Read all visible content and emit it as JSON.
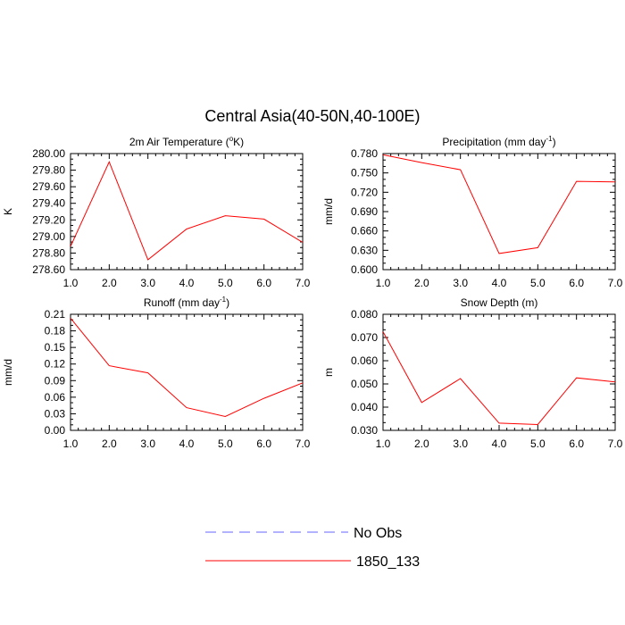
{
  "title": "Central Asia(40-50N,40-100E)",
  "legend": {
    "placement": "bottom-center",
    "entries": [
      {
        "name": "No Obs",
        "color": "#6666ff",
        "dash": "dashed"
      },
      {
        "name": "1850_133",
        "color": "#ff0000",
        "dash": "solid"
      }
    ]
  },
  "chart_data": [
    {
      "type": "line",
      "title": "2m Air Temperature (",
      "title_sup": "o",
      "title_end": "K)",
      "ylabel": "K",
      "xlim": [
        1.0,
        7.0
      ],
      "ylim": [
        278.6,
        280.0
      ],
      "xticks": [
        "1.0",
        "2.0",
        "3.0",
        "4.0",
        "5.0",
        "6.0",
        "7.0"
      ],
      "yticks": [
        "278.60",
        "278.80",
        "279.00",
        "279.20",
        "279.40",
        "279.60",
        "279.80",
        "280.00"
      ],
      "ytick_values": [
        278.6,
        278.8,
        279.0,
        279.2,
        279.4,
        279.6,
        279.8,
        280.0
      ],
      "series": [
        {
          "name": "1850_133",
          "color": "#ff0000",
          "x": [
            1,
            2,
            3,
            4,
            5,
            6,
            7
          ],
          "y": [
            278.88,
            279.9,
            278.72,
            279.09,
            279.25,
            279.21,
            278.93
          ]
        }
      ]
    },
    {
      "type": "line",
      "title": "Precipitation (mm day",
      "title_sup": "-1",
      "title_end": ")",
      "ylabel": "mm/d",
      "xlim": [
        1.0,
        7.0
      ],
      "ylim": [
        0.6,
        0.78
      ],
      "xticks": [
        "1.0",
        "2.0",
        "3.0",
        "4.0",
        "5.0",
        "6.0",
        "7.0"
      ],
      "yticks": [
        "0.600",
        "0.630",
        "0.660",
        "0.690",
        "0.720",
        "0.750",
        "0.780"
      ],
      "ytick_values": [
        0.6,
        0.63,
        0.66,
        0.69,
        0.72,
        0.75,
        0.78
      ],
      "series": [
        {
          "name": "1850_133",
          "color": "#ff0000",
          "x": [
            1,
            2,
            3,
            4,
            5,
            6,
            7
          ],
          "y": [
            0.778,
            0.766,
            0.755,
            0.625,
            0.634,
            0.737,
            0.736
          ]
        }
      ]
    },
    {
      "type": "line",
      "title": "Runoff (mm day",
      "title_sup": "-1",
      "title_end": ")",
      "ylabel": "mm/d",
      "xlim": [
        1.0,
        7.0
      ],
      "ylim": [
        0.0,
        0.21
      ],
      "xticks": [
        "1.0",
        "2.0",
        "3.0",
        "4.0",
        "5.0",
        "6.0",
        "7.0"
      ],
      "yticks": [
        "0.00",
        "0.03",
        "0.06",
        "0.09",
        "0.12",
        "0.15",
        "0.18",
        "0.21"
      ],
      "ytick_values": [
        0.0,
        0.03,
        0.06,
        0.09,
        0.12,
        0.15,
        0.18,
        0.21
      ],
      "series": [
        {
          "name": "1850_133",
          "color": "#ff0000",
          "x": [
            1,
            2,
            3,
            4,
            5,
            6,
            7
          ],
          "y": [
            0.203,
            0.117,
            0.104,
            0.041,
            0.025,
            0.058,
            0.086
          ]
        }
      ]
    },
    {
      "type": "line",
      "title": "Snow Depth (m)",
      "title_sup": "",
      "title_end": "",
      "ylabel": "m",
      "xlim": [
        1.0,
        7.0
      ],
      "ylim": [
        0.03,
        0.08
      ],
      "xticks": [
        "1.0",
        "2.0",
        "3.0",
        "4.0",
        "5.0",
        "6.0",
        "7.0"
      ],
      "yticks": [
        "0.030",
        "0.040",
        "0.050",
        "0.060",
        "0.070",
        "0.080"
      ],
      "ytick_values": [
        0.03,
        0.04,
        0.05,
        0.06,
        0.07,
        0.08
      ],
      "series": [
        {
          "name": "1850_133",
          "color": "#ff0000",
          "x": [
            1,
            2,
            3,
            4,
            5,
            6,
            7
          ],
          "y": [
            0.0725,
            0.042,
            0.0523,
            0.0331,
            0.0325,
            0.0526,
            0.0509
          ]
        }
      ]
    }
  ]
}
